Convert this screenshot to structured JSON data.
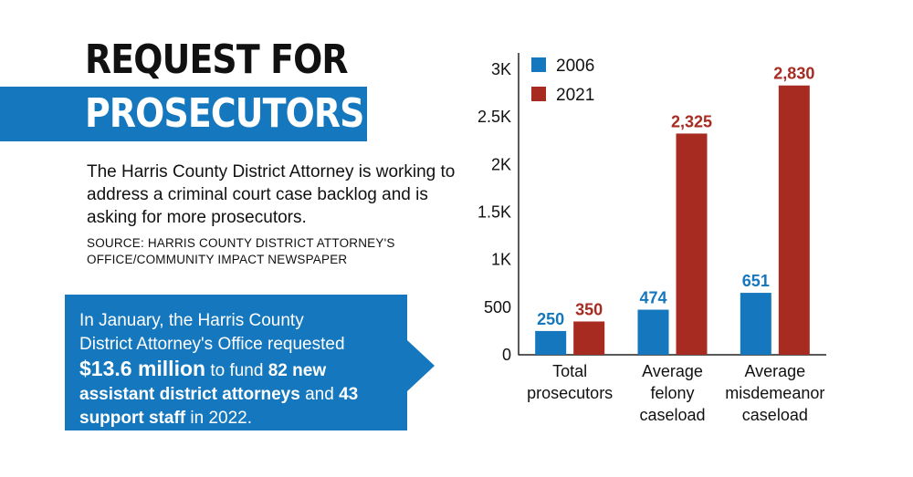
{
  "header": {
    "title_line1": "REQUEST FOR",
    "title_line2": "PROSECUTORS"
  },
  "description": "The Harris County District Attorney is working to address a criminal court case backlog and is asking for more prosecutors.",
  "source_line1": "SOURCE: HARRIS COUNTY DISTRICT ATTORNEY'S",
  "source_line2": "OFFICE/COMMUNITY IMPACT NEWSPAPER",
  "callout": {
    "line1": "In January, the Harris County",
    "line2": "District Attorney's Office requested",
    "amount": "$13.6 million",
    "after_amount": " to fund ",
    "count1": "82 new",
    "line4": "assistant district attorneys",
    "joiner": " and ",
    "count2": "43",
    "line5_bold": "support staff",
    "line5_rest": " in 2022."
  },
  "colors": {
    "accent_blue": "#1577bd",
    "series_2006": "#1577bd",
    "series_2021": "#a82b22"
  },
  "chart_data": {
    "type": "bar",
    "categories": [
      [
        "Total",
        "prosecutors"
      ],
      [
        "Average",
        "felony",
        "caseload"
      ],
      [
        "Average",
        "misdemeanor",
        "caseload"
      ]
    ],
    "series": [
      {
        "name": "2006",
        "values": [
          250,
          474,
          651
        ],
        "labels": [
          "250",
          "474",
          "651"
        ],
        "color": "#1577bd"
      },
      {
        "name": "2021",
        "values": [
          350,
          2325,
          2830
        ],
        "labels": [
          "350",
          "2,325",
          "2,830"
        ],
        "color": "#a82b22"
      }
    ],
    "ylim": [
      0,
      3000
    ],
    "yticks": [
      0,
      500,
      1000,
      1500,
      2000,
      2500,
      3000
    ],
    "ytick_labels": [
      "0",
      "500",
      "1K",
      "1.5K",
      "2K",
      "2.5K",
      "3K"
    ],
    "legend_position": "top-left",
    "grid": false
  }
}
